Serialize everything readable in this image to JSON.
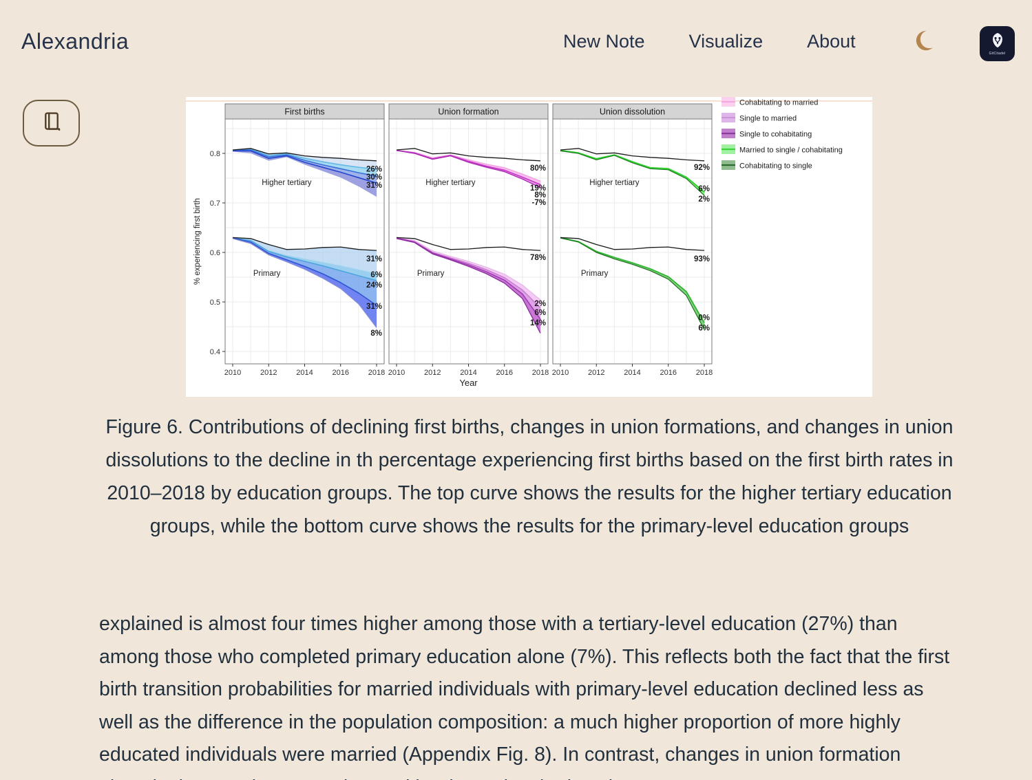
{
  "header": {
    "brand": "Alexandria",
    "nav": [
      {
        "label": "New Note"
      },
      {
        "label": "Visualize"
      },
      {
        "label": "About"
      }
    ],
    "theme_icon": "crescent-moon",
    "logo_text": "GitCitadel"
  },
  "toolbar": {
    "reader_icon": "book"
  },
  "colors": {
    "page_bg": "#f0e7da",
    "text": "#22303e",
    "moon": "#b5854e",
    "logo_bg": "#141930",
    "reader_border": "#6d5b41"
  },
  "figure_caption": "Figure 6. Contributions of declining first births, changes in union formations, and changes in union dissolutions to the decline in th percentage experiencing first births based on the first birth rates in 2010–2018 by education groups. The top curve shows the results for the higher tertiary education groups, while the bottom curve shows the results for the primary-level education groups",
  "article_text": "explained is almost four times higher among those with a tertiary-level education (27%) than among those who completed primary education alone (7%). This reflects both the fact that the first birth transition probabilities for married individuals with primary-level education declined less as well as the difference in the population composition: a much higher proportion of more highly educated individuals were married (Appendix Fig. 8). In contrast, changes in union formation played a larger role among those with primary-level education.",
  "chart_data": {
    "type": "line",
    "xlabel": "Year",
    "ylabel": "% experiencing first birth",
    "x": [
      2010,
      2011,
      2012,
      2013,
      2014,
      2015,
      2016,
      2017,
      2018
    ],
    "x_ticks": [
      2010,
      2012,
      2014,
      2016,
      2018
    ],
    "y_ticks": [
      0.8,
      0.7,
      0.6,
      0.5,
      0.4
    ],
    "ylim": [
      0.375,
      0.869
    ],
    "grid": true,
    "legend_position": "top-right",
    "legend": [
      {
        "label": "Cohabitating to married",
        "fill": "#fbd0ee",
        "line": "#f6a8de"
      },
      {
        "label": "Single to married",
        "fill": "#dfb6e9",
        "line": "#cb97da"
      },
      {
        "label": "Single to cohabitating",
        "fill": "#c07fca",
        "line": "#8d3a9e"
      },
      {
        "label": "Married to single / cohabitating",
        "fill": "#a2f0a2",
        "line": "#3cd63c"
      },
      {
        "label": "Cohabitating to single",
        "fill": "#90bc90",
        "line": "#2e6b2e"
      }
    ],
    "panels": [
      {
        "title": "First births",
        "groups": [
          {
            "label": "Higher tertiary",
            "label_at": {
              "year": 2013,
              "v": 0.736
            },
            "lines": [
              {
                "color": "#1a1a1a",
                "width": 1.3,
                "values": [
                  0.807,
                  0.81,
                  0.799,
                  0.801,
                  0.795,
                  0.792,
                  0.79,
                  0.787,
                  0.785
                ]
              },
              {
                "color": "#62b8e8",
                "width": 1.6,
                "values": [
                  0.806,
                  0.809,
                  0.796,
                  0.799,
                  0.79,
                  0.783,
                  0.777,
                  0.772,
                  0.768
                ]
              },
              {
                "color": "#3b6fd8",
                "width": 1.6,
                "values": [
                  0.806,
                  0.807,
                  0.793,
                  0.797,
                  0.786,
                  0.777,
                  0.769,
                  0.761,
                  0.754
                ]
              },
              {
                "color": "#2344cc",
                "width": 1.6,
                "values": [
                  0.805,
                  0.805,
                  0.79,
                  0.795,
                  0.782,
                  0.772,
                  0.762,
                  0.751,
                  0.74
                ]
              },
              {
                "color": "#9aa0dc",
                "width": 1.0,
                "values": [
                  0.804,
                  0.801,
                  0.786,
                  0.793,
                  0.778,
                  0.765,
                  0.752,
                  0.734,
                  0.713
                ]
              }
            ],
            "bands": [
              {
                "u": 0,
                "l": 1
              },
              {
                "u": 1,
                "l": 2
              },
              {
                "u": 2,
                "l": 3
              },
              {
                "u": 3,
                "l": 4
              }
            ],
            "band_fills": [
              "rgba(170,195,230,0.45)",
              "rgba(120,200,235,0.65)",
              "rgba(95,130,225,0.60)",
              "rgba(140,145,220,0.85)"
            ],
            "end_labels": [
              {
                "text": "26%",
                "v": 0.769
              },
              {
                "text": "30%",
                "v": 0.753
              },
              {
                "text": "31%",
                "v": 0.736
              }
            ]
          },
          {
            "label": "Primary",
            "label_at": {
              "year": 2011.9,
              "v": 0.553
            },
            "lines": [
              {
                "color": "#1a1a1a",
                "width": 1.3,
                "values": [
                  0.63,
                  0.628,
                  0.616,
                  0.606,
                  0.607,
                  0.61,
                  0.611,
                  0.606,
                  0.604
                ]
              },
              {
                "color": "#bcdcf0",
                "width": 1.2,
                "values": [
                  0.63,
                  0.626,
                  0.605,
                  0.595,
                  0.588,
                  0.581,
                  0.574,
                  0.566,
                  0.558
                ]
              },
              {
                "color": "#4aa3dc",
                "width": 1.5,
                "values": [
                  0.629,
                  0.624,
                  0.602,
                  0.591,
                  0.582,
                  0.573,
                  0.563,
                  0.553,
                  0.543
                ]
              },
              {
                "color": "#2f55d0",
                "width": 1.6,
                "values": [
                  0.629,
                  0.621,
                  0.598,
                  0.585,
                  0.572,
                  0.557,
                  0.539,
                  0.518,
                  0.493
                ]
              },
              {
                "color": "#8a8fd0",
                "width": 1.2,
                "values": [
                  0.628,
                  0.618,
                  0.595,
                  0.581,
                  0.566,
                  0.548,
                  0.527,
                  0.496,
                  0.448
                ]
              }
            ],
            "bands": [
              {
                "u": 0,
                "l": 1
              },
              {
                "u": 1,
                "l": 2
              },
              {
                "u": 2,
                "l": 3
              },
              {
                "u": 3,
                "l": 4
              }
            ],
            "band_fills": [
              "rgba(172,206,240,0.70)",
              "rgba(130,195,235,0.80)",
              "rgba(110,160,235,0.80)",
              "rgba(95,115,240,0.88)"
            ],
            "end_labels": [
              {
                "text": "31%",
                "v": 0.5875
              },
              {
                "text": "6%",
                "v": 0.5556
              },
              {
                "text": "24%",
                "v": 0.5347
              },
              {
                "text": "31%",
                "v": 0.4917
              },
              {
                "text": "8%",
                "v": 0.4375
              }
            ]
          }
        ]
      },
      {
        "title": "Union formation",
        "groups": [
          {
            "label": "Higher tertiary",
            "label_at": {
              "year": 2013,
              "v": 0.736
            },
            "lines": [
              {
                "color": "#1a1a1a",
                "width": 1.3,
                "values": [
                  0.807,
                  0.81,
                  0.799,
                  0.801,
                  0.795,
                  0.792,
                  0.79,
                  0.787,
                  0.785
                ]
              },
              {
                "color": "#f2a2e2",
                "width": 1.5,
                "values": [
                  0.806,
                  0.802,
                  0.791,
                  0.797,
                  0.787,
                  0.778,
                  0.771,
                  0.758,
                  0.744
                ]
              },
              {
                "color": "#c838c8",
                "width": 1.7,
                "values": [
                  0.806,
                  0.801,
                  0.789,
                  0.796,
                  0.784,
                  0.774,
                  0.766,
                  0.752,
                  0.737
                ]
              },
              {
                "color": "#a82cb4",
                "width": 1.4,
                "values": [
                  0.806,
                  0.8,
                  0.788,
                  0.795,
                  0.782,
                  0.772,
                  0.763,
                  0.748,
                  0.731
                ]
              }
            ],
            "bands": [
              {
                "u": 1,
                "l": 2
              },
              {
                "u": 2,
                "l": 3
              }
            ],
            "band_fills": [
              "rgba(246,170,235,0.75)",
              "rgba(225,120,220,0.75)"
            ],
            "end_labels": [
              {
                "text": "80%",
                "v": 0.771
              },
              {
                "text": "19%",
                "v": 0.7306
              },
              {
                "text": "8%",
                "v": 0.7167
              },
              {
                "text": "-7%",
                "v": 0.7014
              }
            ]
          },
          {
            "label": "Primary",
            "label_at": {
              "year": 2011.9,
              "v": 0.553
            },
            "lines": [
              {
                "color": "#1a1a1a",
                "width": 1.3,
                "values": [
                  0.63,
                  0.628,
                  0.616,
                  0.606,
                  0.607,
                  0.61,
                  0.611,
                  0.606,
                  0.604
                ]
              },
              {
                "color": "#e8b4e8",
                "width": 1.3,
                "values": [
                  0.63,
                  0.624,
                  0.603,
                  0.592,
                  0.582,
                  0.57,
                  0.556,
                  0.534,
                  0.504
                ]
              },
              {
                "color": "#c878d0",
                "width": 1.4,
                "values": [
                  0.629,
                  0.622,
                  0.6,
                  0.589,
                  0.578,
                  0.565,
                  0.549,
                  0.524,
                  0.488
                ]
              },
              {
                "color": "#a23cb4",
                "width": 1.6,
                "values": [
                  0.629,
                  0.621,
                  0.599,
                  0.587,
                  0.575,
                  0.561,
                  0.544,
                  0.516,
                  0.465
                ]
              },
              {
                "color": "#8c2f9e",
                "width": 1.4,
                "values": [
                  0.628,
                  0.62,
                  0.597,
                  0.585,
                  0.572,
                  0.557,
                  0.538,
                  0.507,
                  0.437
                ]
              }
            ],
            "bands": [
              {
                "u": 1,
                "l": 2
              },
              {
                "u": 2,
                "l": 3
              },
              {
                "u": 3,
                "l": 4
              }
            ],
            "band_fills": [
              "rgba(240,185,240,0.75)",
              "rgba(215,140,225,0.80)",
              "rgba(190,95,205,0.85)"
            ],
            "end_labels": [
              {
                "text": "78%",
                "v": 0.59
              },
              {
                "text": "2%",
                "v": 0.497
              },
              {
                "text": "6%",
                "v": 0.479
              },
              {
                "text": "14%",
                "v": 0.458
              }
            ]
          }
        ]
      },
      {
        "title": "Union dissolution",
        "groups": [
          {
            "label": "Higher tertiary",
            "label_at": {
              "year": 2013,
              "v": 0.736
            },
            "lines": [
              {
                "color": "#1a1a1a",
                "width": 1.3,
                "values": [
                  0.807,
                  0.81,
                  0.799,
                  0.801,
                  0.795,
                  0.792,
                  0.79,
                  0.787,
                  0.785
                ]
              },
              {
                "color": "#2ed32e",
                "width": 2.0,
                "values": [
                  0.806,
                  0.801,
                  0.789,
                  0.797,
                  0.783,
                  0.771,
                  0.769,
                  0.752,
                  0.722
                ]
              },
              {
                "color": "#1d7a1d",
                "width": 1.2,
                "values": [
                  0.805,
                  0.8,
                  0.787,
                  0.796,
                  0.781,
                  0.769,
                  0.767,
                  0.749,
                  0.715
                ]
              }
            ],
            "bands": [
              {
                "u": 1,
                "l": 2
              }
            ],
            "band_fills": [
              "rgba(120,230,120,0.80)"
            ],
            "end_labels": [
              {
                "text": "92%",
                "v": 0.772
              },
              {
                "text": "6%",
                "v": 0.729
              },
              {
                "text": "2%",
                "v": 0.708
              }
            ]
          },
          {
            "label": "Primary",
            "label_at": {
              "year": 2011.9,
              "v": 0.553
            },
            "lines": [
              {
                "color": "#1a1a1a",
                "width": 1.3,
                "values": [
                  0.63,
                  0.628,
                  0.616,
                  0.606,
                  0.607,
                  0.61,
                  0.611,
                  0.606,
                  0.604
                ]
              },
              {
                "color": "#2eb82e",
                "width": 1.8,
                "values": [
                  0.63,
                  0.622,
                  0.602,
                  0.59,
                  0.579,
                  0.567,
                  0.551,
                  0.521,
                  0.458
                ]
              },
              {
                "color": "#1d6e1d",
                "width": 1.2,
                "values": [
                  0.629,
                  0.621,
                  0.6,
                  0.587,
                  0.576,
                  0.563,
                  0.546,
                  0.513,
                  0.444
                ]
              }
            ],
            "bands": [
              {
                "u": 1,
                "l": 2
              }
            ],
            "band_fills": [
              "rgba(110,200,110,0.85)"
            ],
            "end_labels": [
              {
                "text": "93%",
                "v": 0.5875
              },
              {
                "text": "0%",
                "v": 0.469
              },
              {
                "text": "6%",
                "v": 0.448
              }
            ]
          }
        ]
      }
    ]
  }
}
